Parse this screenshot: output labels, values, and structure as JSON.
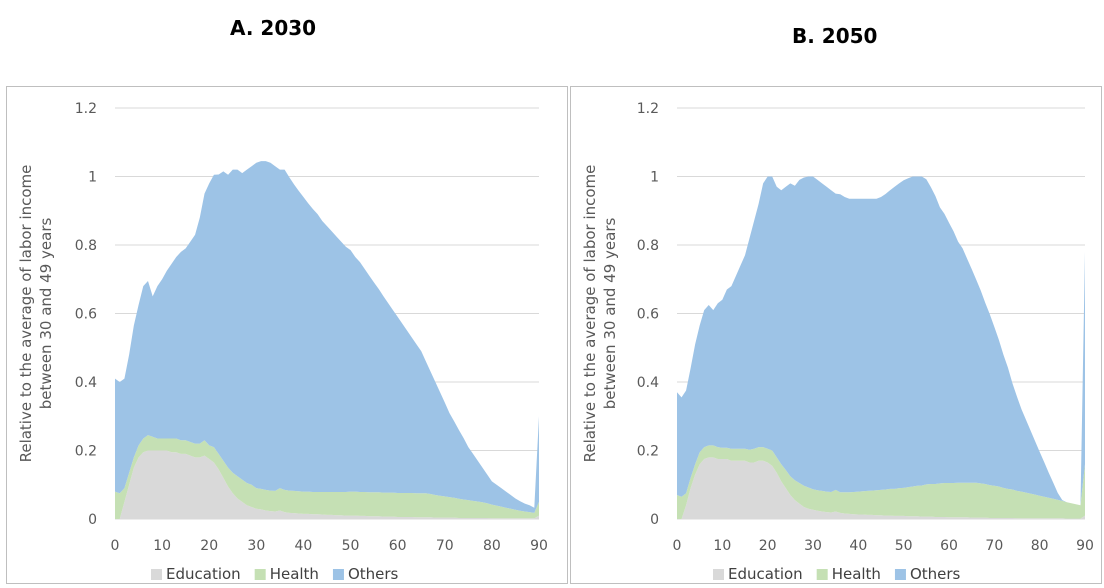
{
  "chart_data": [
    {
      "type": "area",
      "title": "A. 2030",
      "xlabel": "",
      "ylabel": "Relative to the average of labor income between 30 and 49 years",
      "ylabel_lines": [
        "Relative to the average of labor income",
        "between 30 and 49 years"
      ],
      "xlim": [
        0,
        90
      ],
      "ylim": [
        0,
        1.2
      ],
      "x_ticks": [
        0,
        10,
        20,
        30,
        40,
        50,
        60,
        70,
        80,
        90
      ],
      "y_ticks": [
        0,
        0.2,
        0.4,
        0.6,
        0.8,
        1,
        1.2
      ],
      "y_tick_labels": [
        "0",
        "0.2",
        "0.4",
        "0.6",
        "0.8",
        "1",
        "1.2"
      ],
      "grid": true,
      "legend_position": "bottom",
      "stacked": true,
      "x": [
        0,
        1,
        2,
        3,
        4,
        5,
        6,
        7,
        8,
        9,
        10,
        11,
        12,
        13,
        14,
        15,
        16,
        17,
        18,
        19,
        20,
        21,
        22,
        23,
        24,
        25,
        26,
        27,
        28,
        29,
        30,
        31,
        32,
        33,
        34,
        35,
        36,
        37,
        38,
        39,
        40,
        41,
        42,
        43,
        44,
        45,
        46,
        47,
        48,
        49,
        50,
        51,
        52,
        53,
        54,
        55,
        56,
        57,
        58,
        59,
        60,
        61,
        62,
        63,
        64,
        65,
        66,
        67,
        68,
        69,
        70,
        71,
        72,
        73,
        74,
        75,
        76,
        77,
        78,
        79,
        80,
        81,
        82,
        83,
        84,
        85,
        86,
        87,
        88,
        89,
        90
      ],
      "series": [
        {
          "name": "Education",
          "color": "#d9d9d9",
          "values": [
            0.0,
            0.0,
            0.05,
            0.1,
            0.15,
            0.18,
            0.195,
            0.2,
            0.2,
            0.2,
            0.2,
            0.2,
            0.195,
            0.195,
            0.19,
            0.19,
            0.185,
            0.18,
            0.18,
            0.185,
            0.175,
            0.165,
            0.145,
            0.12,
            0.095,
            0.075,
            0.06,
            0.05,
            0.04,
            0.035,
            0.03,
            0.028,
            0.025,
            0.023,
            0.022,
            0.025,
            0.02,
            0.018,
            0.017,
            0.016,
            0.015,
            0.015,
            0.014,
            0.014,
            0.013,
            0.012,
            0.012,
            0.011,
            0.011,
            0.01,
            0.01,
            0.01,
            0.009,
            0.009,
            0.008,
            0.008,
            0.008,
            0.007,
            0.007,
            0.007,
            0.006,
            0.006,
            0.006,
            0.006,
            0.005,
            0.005,
            0.005,
            0.005,
            0.004,
            0.004,
            0.004,
            0.004,
            0.004,
            0.003,
            0.003,
            0.003,
            0.003,
            0.003,
            0.003,
            0.003,
            0.002,
            0.002,
            0.002,
            0.002,
            0.002,
            0.002,
            0.002,
            0.002,
            0.002,
            0.002,
            0.01
          ]
        },
        {
          "name": "Health",
          "color": "#c5e0b4",
          "values": [
            0.08,
            0.075,
            0.04,
            0.035,
            0.03,
            0.035,
            0.04,
            0.045,
            0.04,
            0.035,
            0.035,
            0.035,
            0.04,
            0.04,
            0.04,
            0.04,
            0.04,
            0.04,
            0.04,
            0.045,
            0.04,
            0.045,
            0.045,
            0.05,
            0.055,
            0.06,
            0.065,
            0.065,
            0.065,
            0.065,
            0.06,
            0.06,
            0.06,
            0.06,
            0.06,
            0.065,
            0.065,
            0.065,
            0.065,
            0.065,
            0.065,
            0.065,
            0.065,
            0.065,
            0.066,
            0.067,
            0.067,
            0.068,
            0.068,
            0.069,
            0.07,
            0.07,
            0.07,
            0.07,
            0.07,
            0.07,
            0.07,
            0.07,
            0.07,
            0.07,
            0.07,
            0.07,
            0.07,
            0.07,
            0.07,
            0.07,
            0.07,
            0.068,
            0.066,
            0.064,
            0.062,
            0.06,
            0.058,
            0.056,
            0.054,
            0.052,
            0.05,
            0.048,
            0.046,
            0.043,
            0.04,
            0.037,
            0.034,
            0.031,
            0.028,
            0.025,
            0.022,
            0.02,
            0.018,
            0.016,
            0.04
          ]
        },
        {
          "name": "Others",
          "color": "#9dc3e6",
          "values": [
            0.33,
            0.325,
            0.32,
            0.345,
            0.385,
            0.41,
            0.445,
            0.45,
            0.41,
            0.445,
            0.465,
            0.49,
            0.51,
            0.53,
            0.55,
            0.56,
            0.585,
            0.61,
            0.66,
            0.72,
            0.765,
            0.795,
            0.816,
            0.845,
            0.855,
            0.885,
            0.895,
            0.895,
            0.915,
            0.93,
            0.95,
            0.957,
            0.96,
            0.957,
            0.948,
            0.93,
            0.935,
            0.915,
            0.895,
            0.877,
            0.86,
            0.842,
            0.826,
            0.811,
            0.791,
            0.776,
            0.761,
            0.746,
            0.731,
            0.716,
            0.705,
            0.685,
            0.671,
            0.651,
            0.632,
            0.612,
            0.593,
            0.573,
            0.553,
            0.533,
            0.514,
            0.494,
            0.474,
            0.454,
            0.435,
            0.415,
            0.385,
            0.357,
            0.33,
            0.302,
            0.274,
            0.245,
            0.223,
            0.201,
            0.179,
            0.155,
            0.137,
            0.119,
            0.101,
            0.084,
            0.068,
            0.061,
            0.054,
            0.047,
            0.04,
            0.033,
            0.028,
            0.023,
            0.02,
            0.015,
            0.25
          ]
        }
      ]
    },
    {
      "type": "area",
      "title": "B. 2050",
      "xlabel": "",
      "ylabel": "Relative to the average of labor income between 30 and 49 years",
      "ylabel_lines": [
        "Relative to the average of labor income",
        "between 30 and 49 years"
      ],
      "xlim": [
        0,
        90
      ],
      "ylim": [
        0,
        1.2
      ],
      "x_ticks": [
        0,
        10,
        20,
        30,
        40,
        50,
        60,
        70,
        80,
        90
      ],
      "y_ticks": [
        0,
        0.2,
        0.4,
        0.6,
        0.8,
        1,
        1.2
      ],
      "y_tick_labels": [
        "0",
        "0.2",
        "0.4",
        "0.6",
        "0.8",
        "1",
        "1.2"
      ],
      "grid": true,
      "legend_position": "bottom",
      "stacked": true,
      "x": [
        0,
        1,
        2,
        3,
        4,
        5,
        6,
        7,
        8,
        9,
        10,
        11,
        12,
        13,
        14,
        15,
        16,
        17,
        18,
        19,
        20,
        21,
        22,
        23,
        24,
        25,
        26,
        27,
        28,
        29,
        30,
        31,
        32,
        33,
        34,
        35,
        36,
        37,
        38,
        39,
        40,
        41,
        42,
        43,
        44,
        45,
        46,
        47,
        48,
        49,
        50,
        51,
        52,
        53,
        54,
        55,
        56,
        57,
        58,
        59,
        60,
        61,
        62,
        63,
        64,
        65,
        66,
        67,
        68,
        69,
        70,
        71,
        72,
        73,
        74,
        75,
        76,
        77,
        78,
        79,
        80,
        81,
        82,
        83,
        84,
        85,
        86,
        87,
        88,
        89,
        90
      ],
      "series": [
        {
          "name": "Education",
          "color": "#d9d9d9",
          "values": [
            0.0,
            0.0,
            0.04,
            0.09,
            0.13,
            0.16,
            0.175,
            0.18,
            0.18,
            0.175,
            0.175,
            0.175,
            0.17,
            0.17,
            0.17,
            0.17,
            0.165,
            0.165,
            0.17,
            0.17,
            0.165,
            0.155,
            0.135,
            0.11,
            0.09,
            0.07,
            0.055,
            0.045,
            0.035,
            0.03,
            0.027,
            0.024,
            0.022,
            0.02,
            0.019,
            0.022,
            0.018,
            0.016,
            0.015,
            0.014,
            0.013,
            0.013,
            0.012,
            0.012,
            0.011,
            0.011,
            0.01,
            0.01,
            0.009,
            0.009,
            0.009,
            0.008,
            0.008,
            0.008,
            0.007,
            0.007,
            0.007,
            0.006,
            0.006,
            0.006,
            0.005,
            0.005,
            0.005,
            0.005,
            0.005,
            0.004,
            0.004,
            0.004,
            0.004,
            0.003,
            0.003,
            0.003,
            0.003,
            0.003,
            0.003,
            0.002,
            0.002,
            0.002,
            0.002,
            0.002,
            0.002,
            0.002,
            0.002,
            0.002,
            0.002,
            0.002,
            0.001,
            0.001,
            0.001,
            0.001,
            0.01
          ]
        },
        {
          "name": "Health",
          "color": "#c5e0b4",
          "values": [
            0.07,
            0.065,
            0.035,
            0.03,
            0.03,
            0.035,
            0.035,
            0.035,
            0.035,
            0.035,
            0.033,
            0.033,
            0.035,
            0.035,
            0.035,
            0.035,
            0.037,
            0.04,
            0.04,
            0.04,
            0.04,
            0.045,
            0.045,
            0.05,
            0.053,
            0.055,
            0.058,
            0.06,
            0.062,
            0.062,
            0.06,
            0.06,
            0.06,
            0.06,
            0.06,
            0.063,
            0.06,
            0.062,
            0.063,
            0.065,
            0.067,
            0.068,
            0.07,
            0.071,
            0.073,
            0.074,
            0.076,
            0.078,
            0.079,
            0.081,
            0.082,
            0.085,
            0.087,
            0.089,
            0.091,
            0.094,
            0.095,
            0.096,
            0.098,
            0.099,
            0.1,
            0.1,
            0.101,
            0.101,
            0.101,
            0.102,
            0.102,
            0.1,
            0.098,
            0.096,
            0.094,
            0.092,
            0.088,
            0.085,
            0.083,
            0.08,
            0.078,
            0.075,
            0.072,
            0.069,
            0.066,
            0.063,
            0.06,
            0.057,
            0.054,
            0.051,
            0.048,
            0.045,
            0.042,
            0.039,
            0.15
          ]
        },
        {
          "name": "Others",
          "color": "#9dc3e6",
          "values": [
            0.3,
            0.29,
            0.3,
            0.32,
            0.35,
            0.37,
            0.4,
            0.41,
            0.395,
            0.42,
            0.432,
            0.462,
            0.475,
            0.505,
            0.535,
            0.565,
            0.618,
            0.665,
            0.71,
            0.77,
            0.795,
            0.8,
            0.79,
            0.8,
            0.827,
            0.855,
            0.86,
            0.885,
            0.9,
            0.908,
            0.913,
            0.906,
            0.898,
            0.89,
            0.881,
            0.865,
            0.87,
            0.862,
            0.857,
            0.856,
            0.855,
            0.854,
            0.853,
            0.852,
            0.851,
            0.855,
            0.863,
            0.872,
            0.882,
            0.89,
            0.898,
            0.902,
            0.905,
            0.903,
            0.902,
            0.891,
            0.867,
            0.841,
            0.806,
            0.786,
            0.76,
            0.735,
            0.704,
            0.684,
            0.654,
            0.624,
            0.593,
            0.563,
            0.529,
            0.499,
            0.464,
            0.428,
            0.389,
            0.354,
            0.31,
            0.275,
            0.24,
            0.212,
            0.184,
            0.156,
            0.128,
            0.101,
            0.073,
            0.047,
            0.02,
            0.002,
            0.0,
            0.0,
            0.0,
            0.0,
            0.62
          ]
        }
      ]
    }
  ]
}
